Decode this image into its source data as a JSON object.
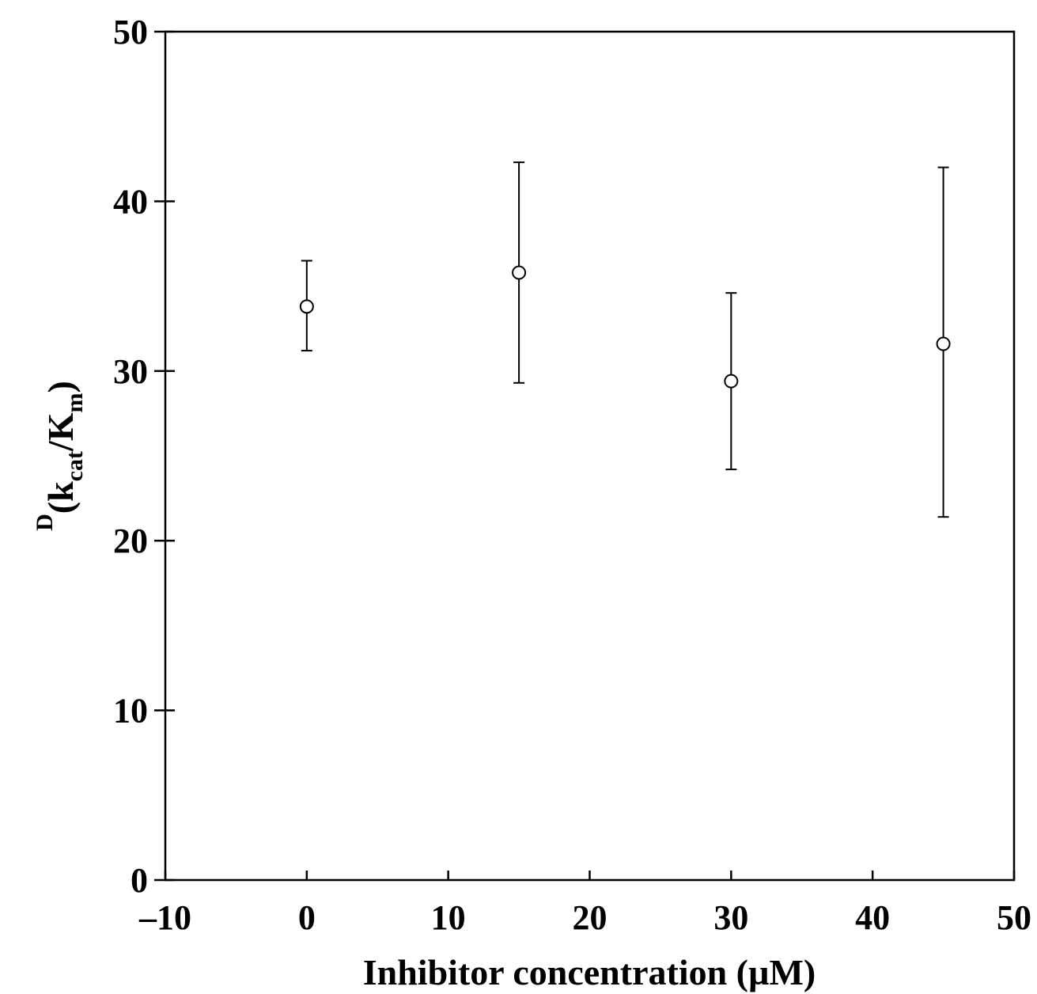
{
  "chart_data": {
    "type": "scatter",
    "title": "",
    "xlabel": "Inhibitor concentration (µM)",
    "ylabel": {
      "superscript": "D",
      "open": "(k",
      "sub1": "cat",
      "mid": "/K",
      "sub2": "m",
      "close": ")"
    },
    "xlim": [
      -10,
      50
    ],
    "ylim": [
      0,
      50
    ],
    "xticks": [
      -10,
      0,
      10,
      20,
      30,
      40,
      50
    ],
    "xtick_labels": [
      "–10",
      "0",
      "10",
      "20",
      "30",
      "40",
      "50"
    ],
    "yticks": [
      0,
      10,
      20,
      30,
      40,
      50
    ],
    "ytick_labels": [
      "0",
      "10",
      "20",
      "30",
      "40",
      "50"
    ],
    "grid": false,
    "marker": "open-circle",
    "color": "#000000",
    "series": [
      {
        "points": [
          {
            "x": 0,
            "y": 33.8,
            "err_low": 31.2,
            "err_high": 36.5
          },
          {
            "x": 15,
            "y": 35.8,
            "err_low": 29.3,
            "err_high": 42.3
          },
          {
            "x": 30,
            "y": 29.4,
            "err_low": 24.2,
            "err_high": 34.6
          },
          {
            "x": 45,
            "y": 31.6,
            "err_low": 21.4,
            "err_high": 42.0
          }
        ]
      }
    ]
  }
}
